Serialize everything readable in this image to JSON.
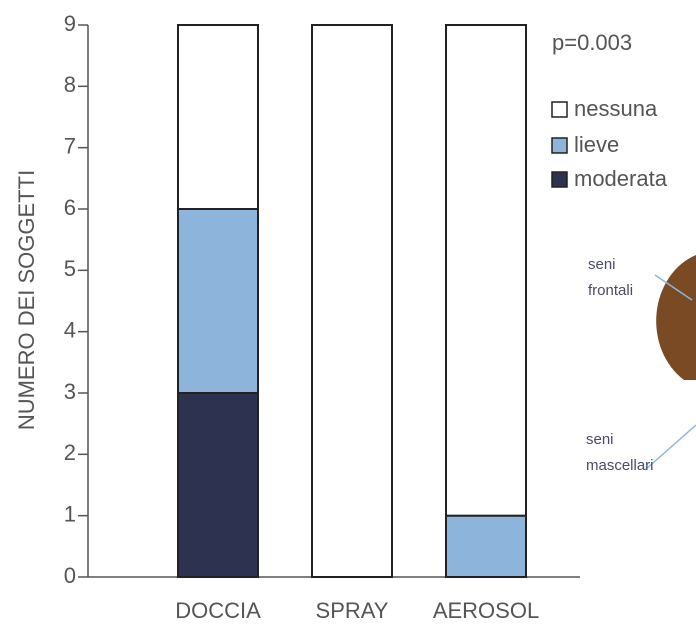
{
  "chart_data": {
    "type": "stacked_bar",
    "y_label": "NUMERO DEI SOGGETTI",
    "categories": [
      "DOCCIA",
      "SPRAY",
      "AEROSOL"
    ],
    "series": [
      {
        "name": "nessuna",
        "color": "#ffffff",
        "values": [
          3,
          9,
          8
        ]
      },
      {
        "name": "lieve",
        "color": "#8db5db",
        "values": [
          3,
          0,
          1
        ]
      },
      {
        "name": "moderata",
        "color": "#2c3250",
        "values": [
          3,
          0,
          0
        ]
      }
    ],
    "ylim": [
      0,
      9
    ],
    "yticks": [
      0,
      1,
      2,
      3,
      4,
      5,
      6,
      7,
      8,
      9
    ],
    "p_value_text": "p=0.003",
    "annotations": [
      [
        "seni",
        "frontali"
      ],
      [
        "seni",
        "mascellari"
      ]
    ]
  }
}
